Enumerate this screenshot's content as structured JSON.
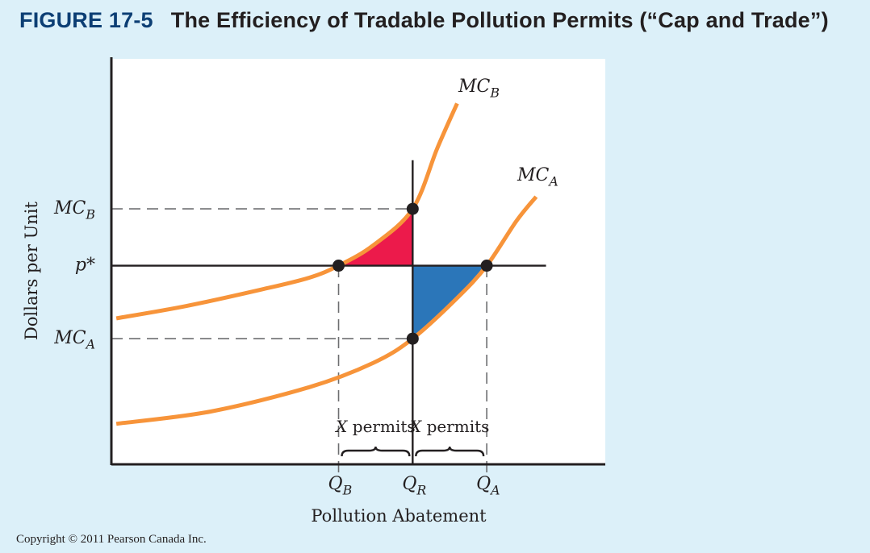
{
  "figure": {
    "number": "FIGURE 17-5",
    "title": "The Efficiency of Tradable Pollution Permits (“Cap and Trade”)",
    "copyright": "Copyright © 2011 Pearson Canada Inc."
  },
  "colors": {
    "background": "#dcf0f9",
    "plot_background": "#ffffff",
    "curve": "#f7943a",
    "red_area": "#ec1a4b",
    "blue_area": "#2b76b9",
    "axis": "#231f20",
    "dashed": "#6d6e70",
    "title_number": "#0c3e74"
  },
  "chart_data": {
    "type": "line",
    "title": "The Efficiency of Tradable Pollution Permits (“Cap and Trade”)",
    "xlabel": "Pollution Abatement",
    "ylabel": "Dollars per Unit",
    "xlim": [
      0,
      10
    ],
    "ylim": [
      0,
      10
    ],
    "grid": false,
    "legend": "none",
    "x_ticks": [
      {
        "label": "Q",
        "sub": "B",
        "x": 4.6
      },
      {
        "label": "Q",
        "sub": "R",
        "x": 6.1
      },
      {
        "label": "Q",
        "sub": "A",
        "x": 7.6
      }
    ],
    "y_ticks": [
      {
        "label": "MC",
        "sub": "B",
        "y": 6.3
      },
      {
        "label": "p*",
        "sub": "",
        "y": 4.9
      },
      {
        "label": "MC",
        "sub": "A",
        "y": 3.1
      }
    ],
    "series": [
      {
        "name": "MC_B",
        "label": "MC",
        "sub": "B",
        "description": "Marginal cost of abatement, firm B (steeper, higher curve)",
        "x": [
          0.1,
          1.5,
          3.0,
          4.0,
          4.6,
          5.3,
          6.1,
          6.6,
          7.0
        ],
        "y": [
          3.6,
          3.9,
          4.3,
          4.6,
          4.9,
          5.4,
          6.3,
          7.8,
          8.9
        ]
      },
      {
        "name": "MC_A",
        "label": "MC",
        "sub": "A",
        "description": "Marginal cost of abatement, firm A (lower curve)",
        "x": [
          0.1,
          2.0,
          4.0,
          5.3,
          6.1,
          7.0,
          7.6,
          8.2,
          8.6
        ],
        "y": [
          1.0,
          1.3,
          1.9,
          2.5,
          3.1,
          4.1,
          4.9,
          6.0,
          6.6
        ]
      }
    ],
    "horizontal_lines": [
      {
        "name": "p_star",
        "y": 4.9,
        "x_range": [
          0,
          8.8
        ],
        "style": "solid"
      },
      {
        "name": "mc_b_level",
        "y": 6.3,
        "x_range": [
          0,
          6.1
        ],
        "style": "dashed"
      },
      {
        "name": "mc_a_level",
        "y": 3.1,
        "x_range": [
          0,
          6.1
        ],
        "style": "dashed"
      }
    ],
    "vertical_lines": [
      {
        "name": "q_r",
        "x": 6.1,
        "y_range": [
          0,
          7.5
        ],
        "style": "solid"
      },
      {
        "name": "q_b",
        "x": 4.6,
        "y_range": [
          0,
          4.9
        ],
        "style": "dashed"
      },
      {
        "name": "q_a",
        "x": 7.6,
        "y_range": [
          0,
          4.9
        ],
        "style": "dashed"
      }
    ],
    "points": [
      {
        "name": "MC_B at Q_R",
        "x": 6.1,
        "y": 6.3
      },
      {
        "name": "MC_B at Q_B",
        "x": 4.6,
        "y": 4.9
      },
      {
        "name": "MC_A at Q_A",
        "x": 7.6,
        "y": 4.9
      },
      {
        "name": "MC_A at Q_R",
        "x": 6.1,
        "y": 3.1
      }
    ],
    "shaded_areas": [
      {
        "name": "cost-saving firm B",
        "color": "red",
        "between": "MC_B and p*",
        "x_range": [
          4.6,
          6.1
        ]
      },
      {
        "name": "extra cost firm A",
        "color": "blue",
        "between": "p* and MC_A",
        "x_range": [
          6.1,
          7.6
        ]
      }
    ],
    "annotations": [
      {
        "text": "X permits",
        "x_range": [
          4.6,
          6.1
        ],
        "type": "brace"
      },
      {
        "text": "X permits",
        "x_range": [
          6.1,
          7.6
        ],
        "type": "brace"
      }
    ]
  }
}
